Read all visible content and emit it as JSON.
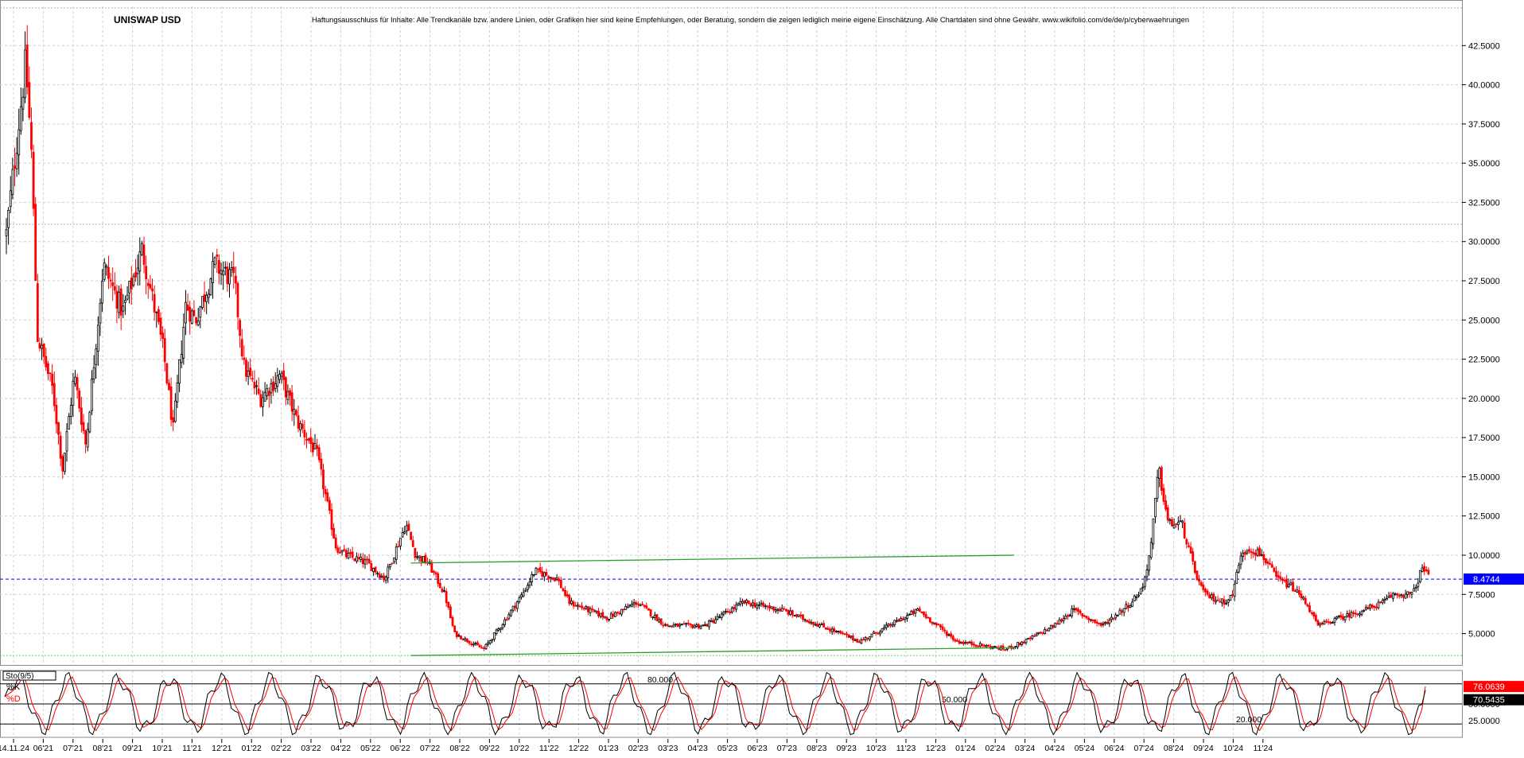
{
  "header": {
    "symbol": "UNISWAP USD",
    "disclaimer": "Haftungsausschluss für Inhalte: Alle Trendkanäle bzw. andere Linien, oder Grafiken hier sind keine Empfehlungen, oder Beratung, sondern die zeigen lediglich meine eigene Einschätzung. Alle Chartdaten sind ohne Gewähr.  www.wikifolio.com/de/de/p/cyberwaehrungen"
  },
  "chart_data": [
    {
      "type": "candlestick",
      "title": "UNISWAP USD",
      "ylim": [
        3.0,
        45.0
      ],
      "y_ticks": [
        "42.5000",
        "40.0000",
        "37.5000",
        "35.0000",
        "32.5000",
        "30.0000",
        "27.5000",
        "25.0000",
        "22.5000",
        "20.0000",
        "17.5000",
        "15.0000",
        "12.5000",
        "10.0000",
        "7.5000",
        "5.0000"
      ],
      "y_tick_values": [
        42.5,
        40,
        37.5,
        35,
        32.5,
        30,
        27.5,
        25,
        22.5,
        20,
        17.5,
        15,
        12.5,
        10,
        7.5,
        5
      ],
      "x_tick_labels": [
        "14.11.24",
        "06'21",
        "07'21",
        "08'21",
        "09'21",
        "10'21",
        "11'21",
        "12'21",
        "01'22",
        "02'22",
        "03'22",
        "04'22",
        "05'22",
        "06'22",
        "07'22",
        "08'22",
        "09'22",
        "10'22",
        "11'22",
        "12'22",
        "01'23",
        "02'23",
        "03'23",
        "04'23",
        "05'23",
        "06'23",
        "07'23",
        "08'23",
        "09'23",
        "10'23",
        "11'23",
        "12'23",
        "01'24",
        "02'24",
        "03'24",
        "04'24",
        "05'24",
        "06'24",
        "07'24",
        "08'24",
        "09'24",
        "10'24",
        "11'24"
      ],
      "price_path": [
        [
          0,
          30.5
        ],
        [
          20,
          41.5
        ],
        [
          26,
          35.5
        ],
        [
          32,
          24.0
        ],
        [
          48,
          20.5
        ],
        [
          58,
          15.5
        ],
        [
          70,
          21.5
        ],
        [
          82,
          17.0
        ],
        [
          100,
          28.5
        ],
        [
          120,
          25.5
        ],
        [
          140,
          29.5
        ],
        [
          162,
          23.0
        ],
        [
          172,
          18.0
        ],
        [
          185,
          26.0
        ],
        [
          195,
          25.0
        ],
        [
          215,
          28.5
        ],
        [
          235,
          27.5
        ],
        [
          245,
          22.0
        ],
        [
          262,
          20.0
        ],
        [
          282,
          21.5
        ],
        [
          300,
          18.5
        ],
        [
          320,
          16.5
        ],
        [
          340,
          10.5
        ],
        [
          350,
          10.0
        ],
        [
          372,
          9.5
        ],
        [
          390,
          8.5
        ],
        [
          412,
          12.0
        ],
        [
          422,
          10.0
        ],
        [
          435,
          9.5
        ],
        [
          452,
          7.5
        ],
        [
          462,
          5.0
        ],
        [
          492,
          4.0
        ],
        [
          510,
          5.5
        ],
        [
          532,
          7.5
        ],
        [
          545,
          9.0
        ],
        [
          568,
          8.5
        ],
        [
          580,
          7.0
        ],
        [
          620,
          6.0
        ],
        [
          650,
          7.0
        ],
        [
          680,
          5.5
        ],
        [
          720,
          5.5
        ],
        [
          760,
          7.0
        ],
        [
          800,
          6.5
        ],
        [
          840,
          5.5
        ],
        [
          880,
          4.5
        ],
        [
          910,
          5.5
        ],
        [
          940,
          6.5
        ],
        [
          980,
          4.5
        ],
        [
          1030,
          4.0
        ],
        [
          1050,
          4.5
        ],
        [
          1080,
          5.5
        ],
        [
          1100,
          6.5
        ],
        [
          1130,
          5.5
        ],
        [
          1160,
          7.0
        ],
        [
          1172,
          8.0
        ],
        [
          1180,
          10.5
        ],
        [
          1188,
          15.5
        ],
        [
          1198,
          12.0
        ],
        [
          1212,
          12.0
        ],
        [
          1225,
          9.0
        ],
        [
          1235,
          7.5
        ],
        [
          1255,
          7.0
        ],
        [
          1265,
          7.5
        ],
        [
          1270,
          9.5
        ],
        [
          1280,
          10.5
        ],
        [
          1295,
          10.0
        ],
        [
          1310,
          8.5
        ],
        [
          1325,
          8.0
        ],
        [
          1340,
          7.0
        ],
        [
          1352,
          5.5
        ],
        [
          1375,
          6.0
        ],
        [
          1400,
          6.5
        ],
        [
          1420,
          7.0
        ],
        [
          1430,
          7.5
        ],
        [
          1450,
          7.5
        ],
        [
          1460,
          9.2
        ],
        [
          1468,
          8.47
        ]
      ],
      "last_price": "8.4744",
      "reference_lines": [
        {
          "value": 8.4744,
          "style": "dashed",
          "color": "#0000ff"
        },
        {
          "value": 31.1,
          "style": "dotted",
          "color": "#d9a0a0"
        },
        {
          "value": 3.6,
          "style": "dotted",
          "color": "#66cc66"
        },
        {
          "value": 44.9,
          "style": "dotted",
          "color": "#d9a0a0"
        }
      ],
      "trendlines": [
        {
          "from_time": "07'22",
          "from": 9.5,
          "to_time": "02'24",
          "to": 10.0,
          "color": "#2ca02c"
        },
        {
          "from_time": "07'22",
          "from": 3.6,
          "to_time": "02'24",
          "to": 4.1,
          "color": "#2ca02c"
        }
      ],
      "colors": {
        "up": "#000000",
        "down": "#ff0000",
        "grid": "#d0d0d0"
      }
    },
    {
      "type": "line",
      "title": "Sto(9/5)",
      "series": [
        {
          "name": "%K",
          "color": "#000000",
          "last": "70.5435"
        },
        {
          "name": "%D",
          "color": "#ff0000",
          "last": "76.0639"
        }
      ],
      "ylim": [
        0,
        100
      ],
      "levels": [
        {
          "value": 80,
          "label": "80.000"
        },
        {
          "value": 50,
          "label": "50.000"
        },
        {
          "value": 20,
          "label": "20.000"
        }
      ],
      "y_ticks": [
        "50.0000",
        "25.0000"
      ],
      "y_tick_values": [
        50,
        25
      ]
    }
  ]
}
